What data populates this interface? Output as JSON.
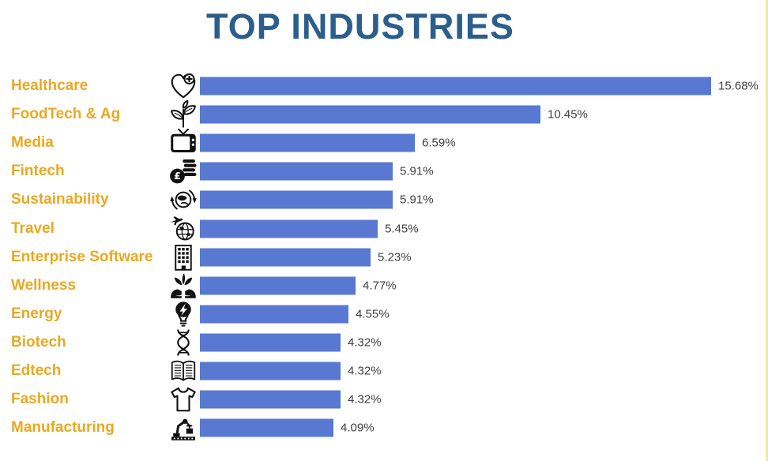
{
  "title": "TOP INDUSTRIES",
  "colors": {
    "title": "#2C5E8C",
    "label": "#EBA820",
    "bar": "#5878D2",
    "value_text": "#3F3F3F",
    "accent_strip": "#F5E4A2",
    "icon": "#111111"
  },
  "chart_data": {
    "type": "bar",
    "orientation": "horizontal",
    "title": "TOP INDUSTRIES",
    "xlabel": "",
    "ylabel": "",
    "grid": false,
    "legend": null,
    "value_format": "percent",
    "xlim": [
      0,
      16
    ],
    "max_value": 15.68,
    "categories": [
      "Healthcare",
      "FoodTech & Ag",
      "Media",
      "Fintech",
      "Sustainability",
      "Travel",
      "Enterprise Software",
      "Wellness",
      "Energy",
      "Biotech",
      "Edtech",
      "Fashion",
      "Manufacturing"
    ],
    "values": [
      15.68,
      10.45,
      6.59,
      5.91,
      5.91,
      5.45,
      5.23,
      4.77,
      4.55,
      4.32,
      4.32,
      4.32,
      4.09
    ],
    "value_labels": [
      "15.68%",
      "10.45%",
      "6.59%",
      "5.91%",
      "5.91%",
      "5.45%",
      "5.23%",
      "4.77%",
      "4.55%",
      "4.32%",
      "4.32%",
      "4.32%",
      "4.09%"
    ],
    "icons": [
      "heart-medical-icon",
      "sprout-icon",
      "tv-icon",
      "coins-pound-icon",
      "globe-recycle-icon",
      "globe-travel-icon",
      "office-building-icon",
      "hands-leaves-icon",
      "lightbulb-energy-icon",
      "dna-icon",
      "open-book-icon",
      "tshirt-icon",
      "robot-arm-icon"
    ]
  }
}
